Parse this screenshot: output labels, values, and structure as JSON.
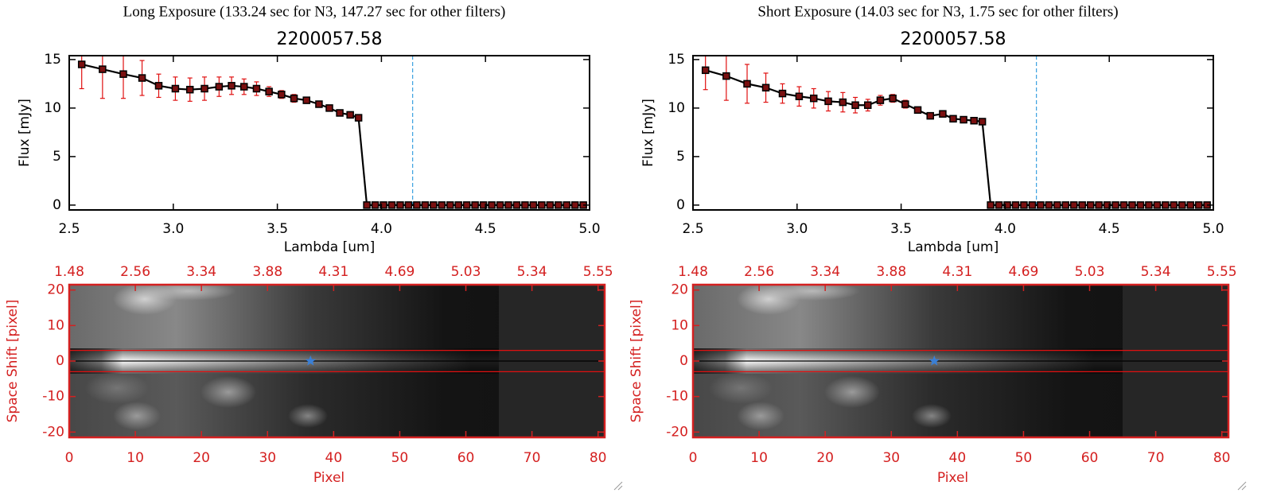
{
  "chart_data": [
    {
      "type": "line",
      "header": "Long Exposure (133.24 sec for N3, 147.27 sec for other filters)",
      "title": "2200057.58",
      "xlabel": "Lambda [um]",
      "ylabel": "Flux [mJy]",
      "x": [
        2.56,
        2.66,
        2.76,
        2.85,
        2.93,
        3.01,
        3.08,
        3.15,
        3.22,
        3.28,
        3.34,
        3.4,
        3.46,
        3.52,
        3.58,
        3.64,
        3.7,
        3.75,
        3.8,
        3.85,
        3.89,
        3.93,
        3.97,
        4.01,
        4.05,
        4.09,
        4.13,
        4.17,
        4.21,
        4.25,
        4.29,
        4.33,
        4.37,
        4.41,
        4.45,
        4.49,
        4.53,
        4.57,
        4.61,
        4.65,
        4.69,
        4.73,
        4.77,
        4.81,
        4.85,
        4.89,
        4.93,
        4.97
      ],
      "values": [
        14.5,
        14.0,
        13.5,
        13.1,
        12.3,
        12.0,
        11.9,
        12.0,
        12.2,
        12.3,
        12.2,
        12.0,
        11.7,
        11.4,
        11.0,
        10.8,
        10.4,
        10.0,
        9.5,
        9.3,
        9.0,
        0,
        0,
        0,
        0,
        0,
        0,
        0,
        0,
        0,
        0,
        0,
        0,
        0,
        0,
        0,
        0,
        0,
        0,
        0,
        0,
        0,
        0,
        0,
        0,
        0,
        0,
        0
      ],
      "errors": [
        2.5,
        3.0,
        2.5,
        1.8,
        1.2,
        1.2,
        1.2,
        1.2,
        1.0,
        0.9,
        0.8,
        0.7,
        0.5,
        0.4,
        0.4,
        0.3,
        0.3,
        0.3,
        0.3,
        0.3,
        0.3,
        0.15,
        0.15,
        0.15,
        0.15,
        0.15,
        0.15,
        0.15,
        0.15,
        0.15,
        0.15,
        0.15,
        0.15,
        0.15,
        0.15,
        0.15,
        0.15,
        0.15,
        0.15,
        0.15,
        0.15,
        0.15,
        0.15,
        0.15,
        0.15,
        0.15,
        0.15,
        0.15
      ],
      "color": "#000000",
      "error_color": "#e01010",
      "xlim": [
        2.5,
        5.0
      ],
      "xticks": [
        2.5,
        {
          "value": 3,
          "label": "3.0"
        },
        3.5,
        {
          "value": 4,
          "label": "4.0"
        },
        4.5,
        {
          "value": 5,
          "label": "5.0"
        }
      ],
      "ylim": [
        -0.5,
        15.4
      ],
      "yticks": [
        0,
        5,
        10,
        15
      ],
      "vline": {
        "value": 4.15,
        "color": "#3aa0e0"
      }
    },
    {
      "type": "image",
      "xlabel": "Pixel",
      "ylabel": "Space Shift [pixel]",
      "color": "#d42020",
      "xlim": [
        0,
        81
      ],
      "xticks": [
        0,
        10,
        20,
        30,
        40,
        50,
        60,
        70,
        80
      ],
      "x2ticks": [
        {
          "value": 0,
          "label": "1.48"
        },
        {
          "value": 10,
          "label": "2.56"
        },
        {
          "value": 20,
          "label": "3.34"
        },
        {
          "value": 30,
          "label": "3.88"
        },
        {
          "value": 40,
          "label": "4.31"
        },
        {
          "value": 50,
          "label": "4.69"
        },
        {
          "value": 60,
          "label": "5.03"
        },
        {
          "value": 70,
          "label": "5.34"
        },
        {
          "value": 80,
          "label": "5.55"
        }
      ],
      "ylim": [
        -21.5,
        21.5
      ],
      "yticks": [
        -20,
        -10,
        0,
        10,
        20
      ],
      "hlines": [
        {
          "value": 3,
          "color": "#e01010"
        },
        {
          "value": -3,
          "color": "#e01010"
        },
        {
          "value": 0,
          "color": "#000000"
        }
      ],
      "marker": {
        "x": 36.5,
        "y": 0,
        "color": "#3a7fd5"
      }
    },
    {
      "type": "line",
      "header": "Short Exposure (14.03 sec for N3, 1.75 sec for other filters)",
      "title": "2200057.58",
      "xlabel": "Lambda [um]",
      "ylabel": "Flux [mJy]",
      "x": [
        2.56,
        2.66,
        2.76,
        2.85,
        2.93,
        3.01,
        3.08,
        3.15,
        3.22,
        3.28,
        3.34,
        3.4,
        3.46,
        3.52,
        3.58,
        3.64,
        3.7,
        3.75,
        3.8,
        3.85,
        3.89,
        3.93,
        3.97,
        4.01,
        4.05,
        4.09,
        4.13,
        4.17,
        4.21,
        4.25,
        4.29,
        4.33,
        4.37,
        4.41,
        4.45,
        4.49,
        4.53,
        4.57,
        4.61,
        4.65,
        4.69,
        4.73,
        4.77,
        4.81,
        4.85,
        4.89,
        4.93,
        4.97
      ],
      "values": [
        13.9,
        13.3,
        12.5,
        12.1,
        11.5,
        11.2,
        11.0,
        10.7,
        10.6,
        10.3,
        10.3,
        10.8,
        11.0,
        10.4,
        9.8,
        9.2,
        9.4,
        8.9,
        8.8,
        8.7,
        8.6,
        0,
        0,
        0,
        0,
        0,
        0,
        0,
        0,
        0,
        0,
        0,
        0,
        0,
        0,
        0,
        0,
        0,
        0,
        0,
        0,
        0,
        0,
        0,
        0,
        0,
        0,
        0
      ],
      "errors": [
        2.0,
        2.5,
        2.0,
        1.5,
        1.0,
        1.0,
        1.0,
        1.0,
        1.0,
        0.8,
        0.6,
        0.5,
        0.4,
        0.4,
        0.3,
        0.3,
        0.3,
        0.3,
        0.3,
        0.3,
        0.3,
        0.15,
        0.15,
        0.15,
        0.15,
        0.15,
        0.15,
        0.15,
        0.15,
        0.15,
        0.15,
        0.15,
        0.15,
        0.15,
        0.15,
        0.15,
        0.15,
        0.15,
        0.15,
        0.15,
        0.15,
        0.15,
        0.15,
        0.15,
        0.15,
        0.15,
        0.15,
        0.15
      ],
      "color": "#000000",
      "error_color": "#e01010",
      "xlim": [
        2.5,
        5.0
      ],
      "xticks": [
        2.5,
        {
          "value": 3,
          "label": "3.0"
        },
        3.5,
        {
          "value": 4,
          "label": "4.0"
        },
        4.5,
        {
          "value": 5,
          "label": "5.0"
        }
      ],
      "ylim": [
        -0.5,
        15.4
      ],
      "yticks": [
        0,
        5,
        10,
        15
      ],
      "vline": {
        "value": 4.15,
        "color": "#3aa0e0"
      }
    },
    {
      "type": "image",
      "xlabel": "Pixel",
      "ylabel": "Space Shift [pixel]",
      "color": "#d42020",
      "xlim": [
        0,
        81
      ],
      "xticks": [
        0,
        10,
        20,
        30,
        40,
        50,
        60,
        70,
        80
      ],
      "x2ticks": [
        {
          "value": 0,
          "label": "1.48"
        },
        {
          "value": 10,
          "label": "2.56"
        },
        {
          "value": 20,
          "label": "3.34"
        },
        {
          "value": 30,
          "label": "3.88"
        },
        {
          "value": 40,
          "label": "4.31"
        },
        {
          "value": 50,
          "label": "4.69"
        },
        {
          "value": 60,
          "label": "5.03"
        },
        {
          "value": 70,
          "label": "5.34"
        },
        {
          "value": 80,
          "label": "5.55"
        }
      ],
      "ylim": [
        -21.5,
        21.5
      ],
      "yticks": [
        -20,
        -10,
        0,
        10,
        20
      ],
      "hlines": [
        {
          "value": 3,
          "color": "#e01010"
        },
        {
          "value": -3,
          "color": "#e01010"
        },
        {
          "value": 0,
          "color": "#000000"
        }
      ],
      "marker": {
        "x": 36.5,
        "y": 0,
        "color": "#3a7fd5"
      }
    }
  ]
}
